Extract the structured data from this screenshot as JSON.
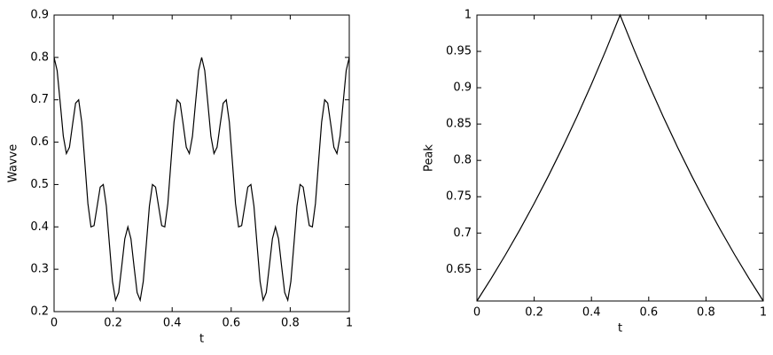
{
  "chart_data": [
    {
      "type": "line",
      "xlabel": "t",
      "ylabel": "Wavve",
      "xlim": [
        0,
        1
      ],
      "ylim": [
        0.2,
        0.9
      ],
      "xticks": [
        0,
        0.2,
        0.4,
        0.6,
        0.8,
        1
      ],
      "yticks": [
        0.2,
        0.3,
        0.4,
        0.5,
        0.6,
        0.7,
        0.8,
        0.9
      ],
      "color": "#000000",
      "x": [
        0,
        0.0104,
        0.0208,
        0.0313,
        0.0417,
        0.0521,
        0.0625,
        0.0729,
        0.0833,
        0.0938,
        0.1042,
        0.1146,
        0.125,
        0.1354,
        0.1458,
        0.1563,
        0.1667,
        0.1771,
        0.1875,
        0.1979,
        0.2083,
        0.2188,
        0.2292,
        0.2396,
        0.25,
        0.2604,
        0.2708,
        0.2813,
        0.2917,
        0.3021,
        0.3125,
        0.3229,
        0.3333,
        0.3438,
        0.3542,
        0.3646,
        0.375,
        0.3854,
        0.3958,
        0.4063,
        0.4167,
        0.4271,
        0.4375,
        0.4479,
        0.4583,
        0.4688,
        0.4792,
        0.4896,
        0.5,
        0.5104,
        0.5208,
        0.5313,
        0.5417,
        0.5521,
        0.5625,
        0.5729,
        0.5833,
        0.5938,
        0.6042,
        0.6146,
        0.625,
        0.6354,
        0.6458,
        0.6563,
        0.6667,
        0.6771,
        0.6875,
        0.6979,
        0.7083,
        0.7188,
        0.7292,
        0.7396,
        0.75,
        0.7604,
        0.7708,
        0.7813,
        0.7917,
        0.8021,
        0.8125,
        0.8229,
        0.8333,
        0.8438,
        0.8542,
        0.8646,
        0.875,
        0.8854,
        0.8958,
        0.9063,
        0.9167,
        0.9271,
        0.9375,
        0.9479,
        0.9583,
        0.9688,
        0.9792,
        0.9896,
        1
      ],
      "values": [
        0.8,
        0.769,
        0.693,
        0.614,
        0.573,
        0.588,
        0.641,
        0.692,
        0.7,
        0.647,
        0.552,
        0.455,
        0.4,
        0.403,
        0.448,
        0.494,
        0.5,
        0.449,
        0.359,
        0.271,
        0.227,
        0.245,
        0.307,
        0.372,
        0.4,
        0.372,
        0.307,
        0.245,
        0.227,
        0.271,
        0.359,
        0.449,
        0.5,
        0.494,
        0.448,
        0.403,
        0.4,
        0.455,
        0.552,
        0.647,
        0.7,
        0.692,
        0.641,
        0.588,
        0.573,
        0.614,
        0.693,
        0.769,
        0.8,
        0.769,
        0.693,
        0.614,
        0.573,
        0.588,
        0.641,
        0.692,
        0.7,
        0.647,
        0.552,
        0.455,
        0.4,
        0.403,
        0.448,
        0.494,
        0.5,
        0.449,
        0.359,
        0.271,
        0.227,
        0.245,
        0.307,
        0.372,
        0.4,
        0.372,
        0.307,
        0.245,
        0.227,
        0.271,
        0.359,
        0.449,
        0.5,
        0.494,
        0.448,
        0.403,
        0.4,
        0.455,
        0.552,
        0.647,
        0.7,
        0.692,
        0.641,
        0.588,
        0.573,
        0.614,
        0.693,
        0.769,
        0.8
      ]
    },
    {
      "type": "line",
      "xlabel": "t",
      "ylabel": "Peak",
      "xlim": [
        0,
        1
      ],
      "ylim": [
        0.6065,
        1
      ],
      "xticks": [
        0,
        0.2,
        0.4,
        0.6,
        0.8,
        1
      ],
      "yticks": [
        0.65,
        0.7,
        0.75,
        0.8,
        0.85,
        0.9,
        0.95,
        1
      ],
      "color": "#000000",
      "x": [
        0,
        0.05,
        0.1,
        0.15,
        0.2,
        0.25,
        0.3,
        0.35,
        0.4,
        0.45,
        0.5,
        0.55,
        0.6,
        0.65,
        0.7,
        0.75,
        0.8,
        0.85,
        0.9,
        0.95,
        1
      ],
      "values": [
        0.6065,
        0.6376,
        0.6703,
        0.7047,
        0.7408,
        0.7788,
        0.8187,
        0.8607,
        0.9048,
        0.9512,
        1,
        0.9512,
        0.9048,
        0.8607,
        0.8187,
        0.7788,
        0.7408,
        0.7047,
        0.6703,
        0.6376,
        0.6065
      ]
    }
  ]
}
